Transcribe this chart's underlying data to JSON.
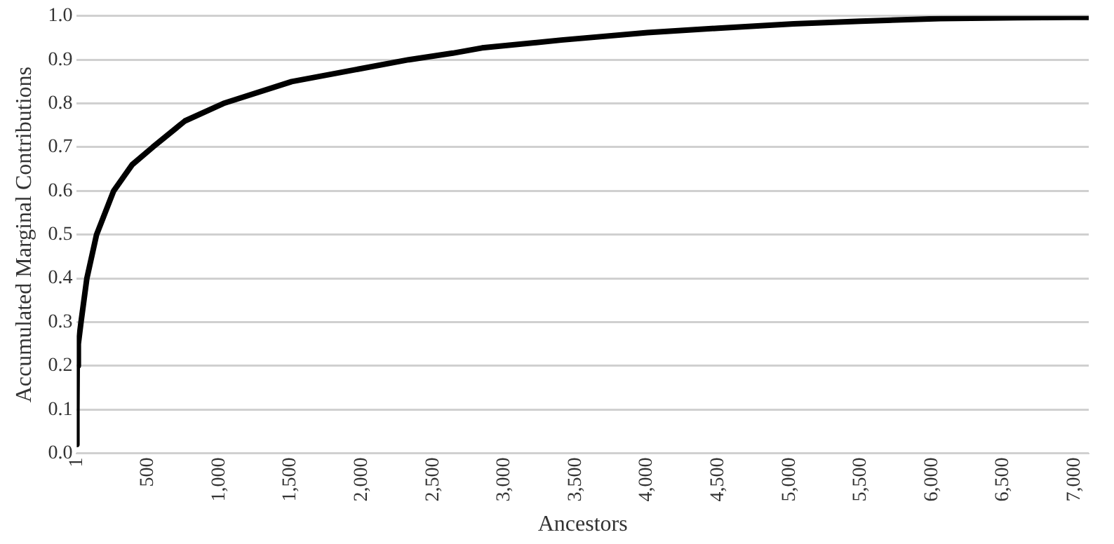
{
  "chart_data": {
    "type": "line",
    "xlabel": "Ancestors",
    "ylabel": "Accumulated Marginal Contributions",
    "x": [
      1,
      2,
      4,
      12,
      31,
      72,
      140,
      260,
      390,
      534,
      760,
      1030,
      1509,
      2330,
      2639,
      2844,
      3400,
      4004,
      4500,
      5031,
      5500,
      6058,
      6600,
      7100
    ],
    "series": [
      {
        "color": "#000000",
        "values": [
          0.02,
          0.1,
          0.2,
          0.25,
          0.3,
          0.4,
          0.5,
          0.6,
          0.66,
          0.7,
          0.76,
          0.8,
          0.85,
          0.9,
          0.915,
          0.927,
          0.945,
          0.962,
          0.972,
          0.982,
          0.988,
          0.994,
          0.996,
          0.997
        ]
      }
    ],
    "xlim": [
      1,
      7100
    ],
    "xticks": [
      {
        "value": 1,
        "label": "1"
      },
      {
        "value": 500,
        "label": "500"
      },
      {
        "value": 1000,
        "label": "1,000"
      },
      {
        "value": 1500,
        "label": "1,500"
      },
      {
        "value": 2000,
        "label": "2,000"
      },
      {
        "value": 2500,
        "label": "2,500"
      },
      {
        "value": 3000,
        "label": "3,000"
      },
      {
        "value": 3500,
        "label": "3,500"
      },
      {
        "value": 4000,
        "label": "4,000"
      },
      {
        "value": 4500,
        "label": "4,500"
      },
      {
        "value": 5000,
        "label": "5,000"
      },
      {
        "value": 5500,
        "label": "5,500"
      },
      {
        "value": 6000,
        "label": "6,000"
      },
      {
        "value": 6500,
        "label": "6,500"
      },
      {
        "value": 7000,
        "label": "7,000"
      }
    ],
    "ylim": [
      0,
      1
    ],
    "yticks": [
      {
        "value": 0,
        "label": "0.0"
      },
      {
        "value": 0.1,
        "label": "0.1"
      },
      {
        "value": 0.2,
        "label": "0.2"
      },
      {
        "value": 0.3,
        "label": "0.3"
      },
      {
        "value": 0.4,
        "label": "0.4"
      },
      {
        "value": 0.5,
        "label": "0.5"
      },
      {
        "value": 0.6,
        "label": "0.6"
      },
      {
        "value": 0.7,
        "label": "0.7"
      },
      {
        "value": 0.8,
        "label": "0.8"
      },
      {
        "value": 0.9,
        "label": "0.9"
      },
      {
        "value": 1,
        "label": "1.0"
      }
    ],
    "grid": "y",
    "legend": false,
    "marker": "none",
    "line_style": "solid"
  }
}
